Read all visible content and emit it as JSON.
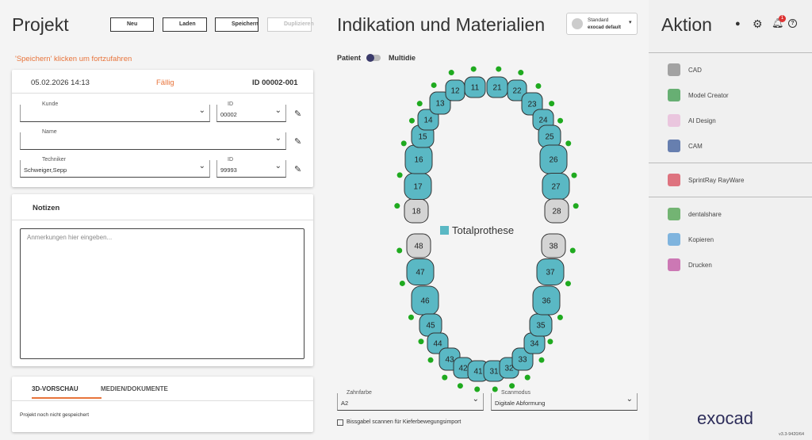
{
  "project": {
    "title": "Projekt",
    "buttons": [
      "Neu",
      "Laden",
      "Speichern",
      "Duplizieren"
    ],
    "hint": "'Speichern' klicken um fortzufahren",
    "date": "05.02.2026 14:13",
    "status": "Fällig",
    "id": "ID 00002-001",
    "fields": {
      "kunde": {
        "label": "Kunde"
      },
      "kunde_id": {
        "label": "ID",
        "value": "00002"
      },
      "name": {
        "label": "Name"
      },
      "techniker": {
        "label": "Techniker",
        "value": "Schweiger,Sepp"
      },
      "techniker_id": {
        "label": "ID",
        "value": "99993"
      }
    },
    "notes": {
      "title": "Notizen",
      "placeholder": "Anmerkungen hier eingeben..."
    },
    "tabs": [
      "3D-VORSCHAU",
      "MEDIEN/DOKUMENTE"
    ],
    "message": "Projekt noch nicht gespeichert"
  },
  "indication": {
    "title": "Indikation und Materialien",
    "preset": {
      "name": "Standard",
      "sub": "exocad default"
    },
    "toggle": [
      "Patient",
      "Multidie"
    ],
    "legend": {
      "label": "Totalprothese",
      "color": "#5ab8c4"
    },
    "upper": [
      {
        "number": 18,
        "color": "#d4d4d4"
      },
      {
        "number": 17,
        "color": "#5ab8c4"
      },
      {
        "number": 16,
        "color": "#5ab8c4"
      },
      {
        "number": 15,
        "color": "#5ab8c4"
      },
      {
        "number": 14,
        "color": "#5ab8c4"
      },
      {
        "number": 13,
        "color": "#5ab8c4"
      },
      {
        "number": 12,
        "color": "#5ab8c4"
      },
      {
        "number": 11,
        "color": "#5ab8c4"
      },
      {
        "number": 21,
        "color": "#5ab8c4"
      },
      {
        "number": 22,
        "color": "#5ab8c4"
      },
      {
        "number": 23,
        "color": "#5ab8c4"
      },
      {
        "number": 24,
        "color": "#5ab8c4"
      },
      {
        "number": 25,
        "color": "#5ab8c4"
      },
      {
        "number": 26,
        "color": "#5ab8c4"
      },
      {
        "number": 27,
        "color": "#5ab8c4"
      },
      {
        "number": 28,
        "color": "#d4d4d4"
      }
    ],
    "lower": [
      {
        "number": 48,
        "color": "#d4d4d4"
      },
      {
        "number": 47,
        "color": "#5ab8c4"
      },
      {
        "number": 46,
        "color": "#5ab8c4"
      },
      {
        "number": 45,
        "color": "#5ab8c4"
      },
      {
        "number": 44,
        "color": "#5ab8c4"
      },
      {
        "number": 43,
        "color": "#5ab8c4"
      },
      {
        "number": 42,
        "color": "#5ab8c4"
      },
      {
        "number": 41,
        "color": "#5ab8c4"
      },
      {
        "number": 31,
        "color": "#5ab8c4"
      },
      {
        "number": 32,
        "color": "#5ab8c4"
      },
      {
        "number": 33,
        "color": "#5ab8c4"
      },
      {
        "number": 34,
        "color": "#5ab8c4"
      },
      {
        "number": 35,
        "color": "#5ab8c4"
      },
      {
        "number": 36,
        "color": "#5ab8c4"
      },
      {
        "number": 37,
        "color": "#5ab8c4"
      },
      {
        "number": 38,
        "color": "#d4d4d4"
      }
    ],
    "shade": {
      "label": "Zahnfarbe",
      "value": "A2"
    },
    "scan": {
      "label": "Scanmodus",
      "value": "Digitale Abformung"
    },
    "checkbox": "Bissgabel scannen für Kieferbewegungsimport"
  },
  "actions": {
    "title": "Aktion",
    "badge": "1",
    "groups": [
      [
        "CAD",
        "Model Creator",
        "AI Design",
        "CAM"
      ],
      [
        "SprintRay RayWare"
      ],
      [
        "dentalshare",
        "Kopieren",
        "Drucken"
      ]
    ],
    "logo": "exocad",
    "version": "v3.3-9420/64"
  }
}
